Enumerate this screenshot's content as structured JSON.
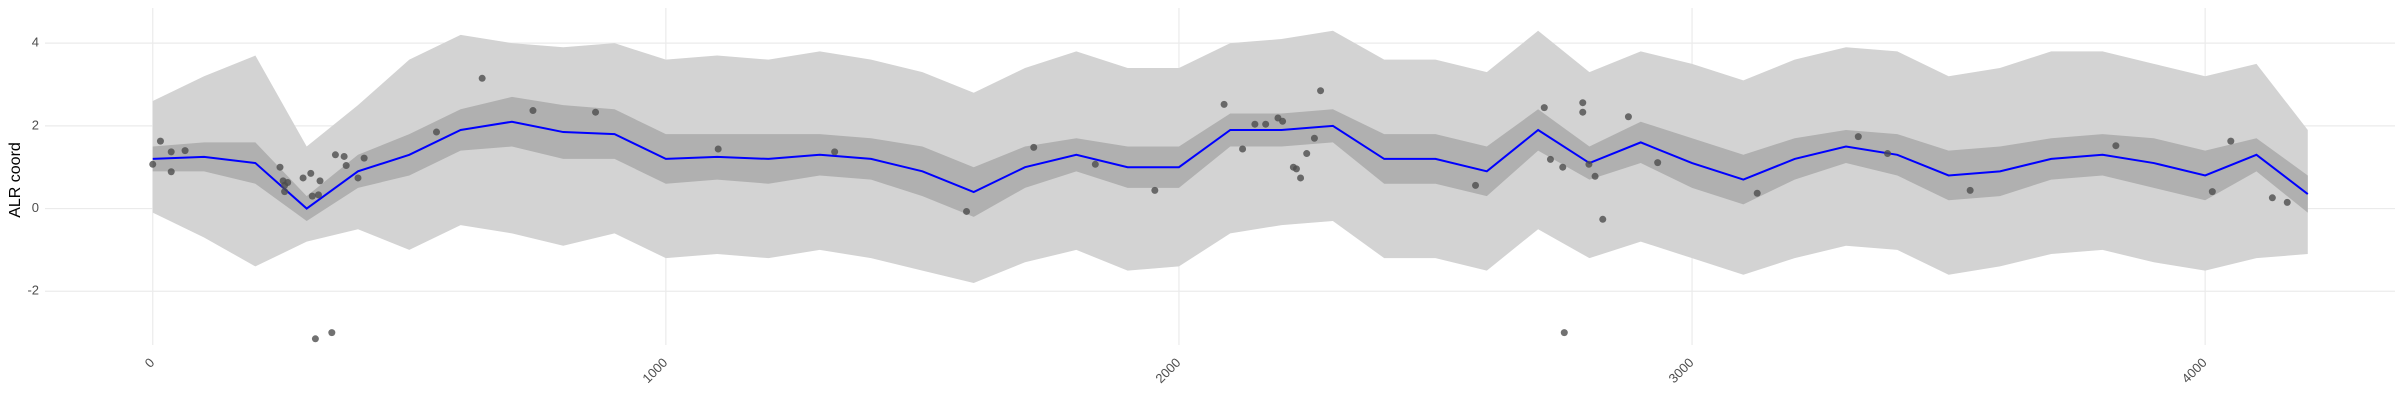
{
  "chart_data": {
    "type": "line",
    "ylabel": "ALR coord",
    "x": [
      0,
      100,
      200,
      300,
      400,
      500,
      600,
      700,
      800,
      900,
      1000,
      1100,
      1200,
      1300,
      1400,
      1500,
      1600,
      1700,
      1800,
      1900,
      2000,
      2100,
      2200,
      2300,
      2400,
      2500,
      2600,
      2700,
      2800,
      2900,
      3000,
      3100,
      3200,
      3300,
      3400,
      3500,
      3600,
      3700,
      3800,
      3900,
      4000,
      4100,
      4200
    ],
    "bands": [
      {
        "color": "#d3d3d3",
        "lower": [
          -0.1,
          -0.7,
          -1.4,
          -0.8,
          -0.5,
          -1.0,
          -0.4,
          -0.6,
          -0.9,
          -0.6,
          -1.2,
          -1.1,
          -1.2,
          -1.0,
          -1.2,
          -1.5,
          -1.8,
          -1.3,
          -1.0,
          -1.5,
          -1.4,
          -0.6,
          -0.4,
          -0.3,
          -1.2,
          -1.2,
          -1.5,
          -0.5,
          -1.2,
          -0.8,
          -1.2,
          -1.6,
          -1.2,
          -0.9,
          -1.0,
          -1.6,
          -1.4,
          -1.1,
          -1.0,
          -1.3,
          -1.5,
          -1.2,
          -1.1
        ],
        "upper": [
          2.6,
          3.2,
          3.7,
          1.5,
          2.5,
          3.6,
          4.2,
          4.0,
          3.9,
          4.0,
          3.6,
          3.7,
          3.6,
          3.8,
          3.6,
          3.3,
          2.8,
          3.4,
          3.8,
          3.4,
          3.4,
          4.0,
          4.1,
          4.3,
          3.6,
          3.6,
          3.3,
          4.3,
          3.3,
          3.8,
          3.5,
          3.1,
          3.6,
          3.9,
          3.8,
          3.2,
          3.4,
          3.8,
          3.8,
          3.5,
          3.2,
          3.5,
          1.9
        ]
      },
      {
        "color": "#b0b0b0",
        "lower": [
          0.9,
          0.9,
          0.6,
          -0.3,
          0.5,
          0.8,
          1.4,
          1.5,
          1.2,
          1.2,
          0.6,
          0.7,
          0.6,
          0.8,
          0.7,
          0.3,
          -0.2,
          0.5,
          0.9,
          0.5,
          0.5,
          1.5,
          1.5,
          1.6,
          0.6,
          0.6,
          0.3,
          1.4,
          0.7,
          1.1,
          0.5,
          0.1,
          0.7,
          1.1,
          0.8,
          0.2,
          0.3,
          0.7,
          0.8,
          0.5,
          0.2,
          0.9,
          -0.1
        ],
        "upper": [
          1.5,
          1.6,
          1.6,
          0.3,
          1.3,
          1.8,
          2.4,
          2.7,
          2.5,
          2.4,
          1.8,
          1.8,
          1.8,
          1.8,
          1.7,
          1.5,
          1.0,
          1.5,
          1.7,
          1.5,
          1.5,
          2.3,
          2.3,
          2.4,
          1.8,
          1.8,
          1.5,
          2.4,
          1.5,
          2.1,
          1.7,
          1.3,
          1.7,
          1.9,
          1.8,
          1.4,
          1.5,
          1.7,
          1.8,
          1.7,
          1.4,
          1.7,
          0.8
        ]
      }
    ],
    "series": [
      {
        "color": "#0000ff",
        "values": [
          1.2,
          1.25,
          1.1,
          0.0,
          0.9,
          1.3,
          1.9,
          2.1,
          1.85,
          1.8,
          1.2,
          1.25,
          1.2,
          1.3,
          1.2,
          0.9,
          0.4,
          1.0,
          1.3,
          1.0,
          1.0,
          1.9,
          1.9,
          2.0,
          1.2,
          1.2,
          0.9,
          1.9,
          1.1,
          1.6,
          1.1,
          0.7,
          1.2,
          1.5,
          1.3,
          0.8,
          0.9,
          1.2,
          1.3,
          1.1,
          0.8,
          1.3,
          0.35
        ]
      }
    ],
    "points": {
      "color": "#4d4d4d",
      "x": [
        0,
        15,
        36,
        36,
        63,
        248,
        254,
        257,
        263,
        257,
        293,
        308,
        311,
        323,
        326,
        356,
        373,
        377,
        400,
        412,
        553,
        642,
        741,
        863,
        1102,
        1329,
        1586,
        1717,
        1837,
        1953,
        2088,
        2124,
        2148,
        2169,
        2193,
        2202,
        2223,
        2229,
        2237,
        2249,
        2264,
        2276,
        2578,
        2712,
        2724,
        2748,
        2787,
        2787,
        2799,
        2811,
        2826,
        2876,
        2933,
        3127,
        3324,
        3381,
        3542,
        3826,
        4014,
        4050,
        4131,
        4160,
        317,
        349,
        2751
      ],
      "y": [
        1.07,
        1.63,
        1.37,
        0.89,
        1.4,
        1.0,
        0.67,
        0.56,
        0.63,
        0.41,
        0.74,
        0.85,
        0.3,
        0.33,
        0.67,
        1.3,
        1.26,
        1.04,
        0.74,
        1.22,
        1.85,
        3.15,
        2.37,
        2.33,
        1.44,
        1.37,
        -0.07,
        1.48,
        1.07,
        0.44,
        2.52,
        1.44,
        2.04,
        2.04,
        2.19,
        2.11,
        1.0,
        0.96,
        0.74,
        1.33,
        1.7,
        2.85,
        0.56,
        2.44,
        1.19,
        1.0,
        2.56,
        2.33,
        1.07,
        0.78,
        -0.26,
        2.22,
        1.11,
        0.37,
        1.74,
        1.33,
        0.44,
        1.52,
        0.41,
        1.63,
        0.26,
        0.15,
        -3.15,
        -3.0,
        -3.0
      ]
    },
    "xlim": [
      -210,
      4370
    ],
    "ylim": [
      -3.3,
      4.85
    ],
    "xticks": [
      0,
      1000,
      2000,
      3000,
      4000
    ],
    "yticks": [
      -2,
      0,
      2,
      4
    ],
    "grid": true
  }
}
